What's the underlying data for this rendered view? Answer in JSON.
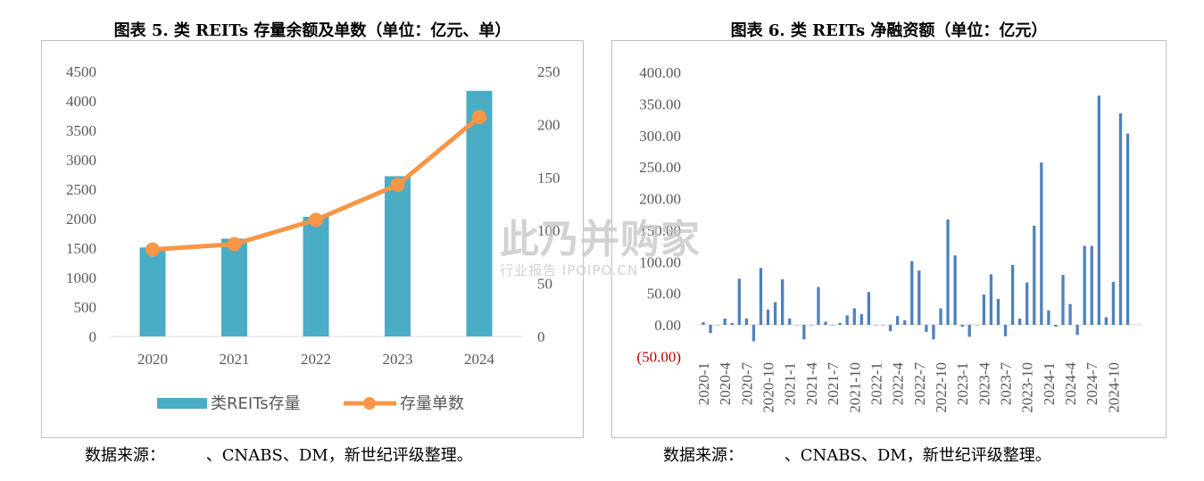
{
  "chart_data": [
    {
      "type": "bar",
      "title": "图表 5. 类 REITs 存量余额及单数（单位：亿元、单）",
      "categories": [
        "2020",
        "2021",
        "2022",
        "2023",
        "2024"
      ],
      "series": [
        {
          "name": "类REITs存量",
          "type": "bar",
          "axis": "left",
          "color": "#4bacc6",
          "values": [
            1510,
            1660,
            2030,
            2720,
            4170
          ]
        },
        {
          "name": "存量单数",
          "type": "line",
          "axis": "right",
          "color": "#f79646",
          "values": [
            82,
            87,
            110,
            143,
            207
          ]
        }
      ],
      "ylim_left": [
        0,
        4500
      ],
      "yticks_left": [
        "0",
        "500",
        "1000",
        "1500",
        "2000",
        "2500",
        "3000",
        "3500",
        "4000",
        "4500"
      ],
      "ylim_right": [
        0,
        250
      ],
      "yticks_right": [
        "0",
        "50",
        "100",
        "150",
        "200",
        "250"
      ],
      "legend_position": "bottom",
      "grid": false
    },
    {
      "type": "bar",
      "title": "图表 6. 类 REITs 净融资额（单位：亿元）",
      "categories": [
        "2020-1",
        "2020-2",
        "2020-3",
        "2020-4",
        "2020-5",
        "2020-6",
        "2020-7",
        "2020-8",
        "2020-9",
        "2020-10",
        "2020-11",
        "2020-12",
        "2021-1",
        "2021-2",
        "2021-3",
        "2021-4",
        "2021-5",
        "2021-6",
        "2021-7",
        "2021-8",
        "2021-9",
        "2021-10",
        "2021-11",
        "2021-12",
        "2022-1",
        "2022-2",
        "2022-3",
        "2022-4",
        "2022-5",
        "2022-6",
        "2022-7",
        "2022-8",
        "2022-9",
        "2022-10",
        "2022-11",
        "2022-12",
        "2023-1",
        "2023-2",
        "2023-3",
        "2023-4",
        "2023-5",
        "2023-6",
        "2023-7",
        "2023-8",
        "2023-9",
        "2023-10",
        "2023-11",
        "2023-12",
        "2024-1",
        "2024-2",
        "2024-3",
        "2024-4",
        "2024-5",
        "2024-6",
        "2024-7",
        "2024-8",
        "2024-9",
        "2024-10",
        "2024-11",
        "2024-12"
      ],
      "tick_labels": [
        "2020-1",
        "2020-4",
        "2020-7",
        "2020-10",
        "2021-1",
        "2021-4",
        "2021-7",
        "2021-10",
        "2022-1",
        "2022-4",
        "2022-7",
        "2022-10",
        "2023-1",
        "2023-4",
        "2023-7",
        "2023-10",
        "2024-1",
        "2024-4",
        "2024-7",
        "2024-10"
      ],
      "series": [
        {
          "color": "#4f81bd",
          "values": [
            4,
            -13,
            0,
            10,
            3,
            73,
            10,
            -26,
            90,
            24,
            36,
            72,
            10,
            0,
            -23,
            0,
            60,
            5,
            0,
            3,
            15,
            26,
            17,
            52,
            0,
            0,
            -10,
            14,
            7,
            101,
            86,
            -11,
            -23,
            26,
            167,
            110,
            -3,
            -19,
            0,
            48,
            80,
            41,
            -18,
            95,
            10,
            67,
            157,
            257,
            23,
            -3,
            79,
            33,
            -16,
            125,
            125,
            363,
            12,
            68,
            335,
            303
          ]
        }
      ],
      "ylim": [
        -50,
        400
      ],
      "yticks": [
        "(50.00)",
        "0.00",
        "50.00",
        "100.00",
        "150.00",
        "200.00",
        "250.00",
        "300.00",
        "350.00",
        "400.00"
      ],
      "grid": false
    }
  ],
  "legend": {
    "bar_label": "类REITs存量",
    "line_label": "存量单数"
  },
  "sources": {
    "left": "数据来源：        、CNABS、DM，新世纪评级整理。",
    "right": "数据来源：        、CNABS、DM，新世纪评级整理。"
  },
  "watermark": {
    "main": "此乃并购家",
    "sub": "行业报告 IPOIPO.CN"
  }
}
